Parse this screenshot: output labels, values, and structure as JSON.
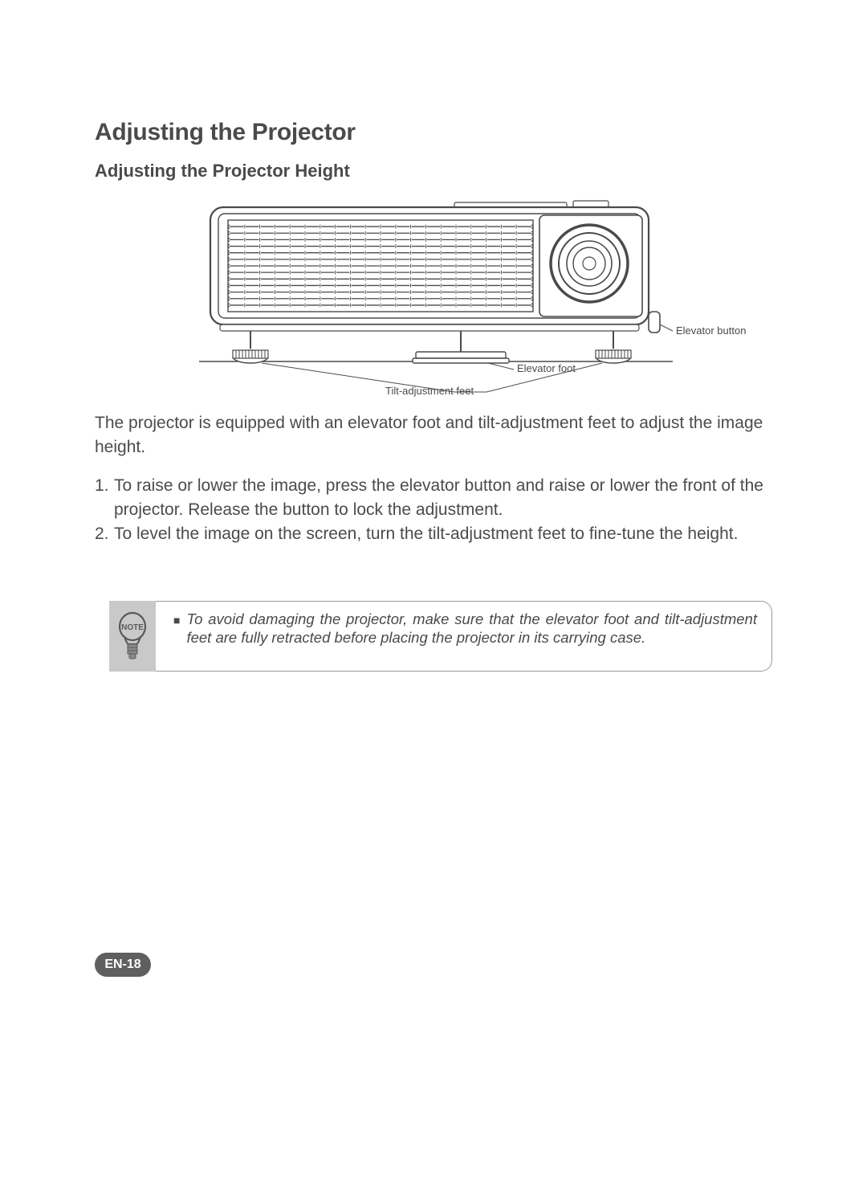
{
  "headings": {
    "title": "Adjusting the Projector",
    "subtitle": "Adjusting the Projector Height"
  },
  "diagram": {
    "labels": {
      "elevator_button": "Elevator button",
      "elevator_foot": "Elevator foot",
      "tilt_feet": "Tilt-adjustment feet"
    },
    "colors": {
      "stroke": "#4a4a4a",
      "fill_light": "#ffffff",
      "grille_line": "#4a4a4a"
    },
    "line_width": 1.2,
    "grille_rows": 13,
    "grille_cols": 20
  },
  "intro_text": "The projector is equipped with an elevator foot and tilt-adjustment feet to adjust the image height.",
  "steps": [
    {
      "num": "1.",
      "text": "To raise or lower the image, press the elevator button and raise or lower the front of the projector. Release the button to lock the adjustment."
    },
    {
      "num": "2.",
      "text": "To level the image on the screen, turn the tilt-adjustment feet to fine-tune the height."
    }
  ],
  "note": {
    "icon_label": "NOTE",
    "bullet": "■",
    "text": "To avoid damaging the projector, make sure that the elevator foot and tilt-adjustment feet are fully retracted before placing the projector in its carrying case.",
    "bg_color": "#c9c9c9",
    "border_color": "#9a9a9a",
    "text_color": "#4a4a4a"
  },
  "page_number": "EN-18",
  "page_pill": {
    "bg": "#5f5f5f",
    "fg": "#ffffff"
  }
}
